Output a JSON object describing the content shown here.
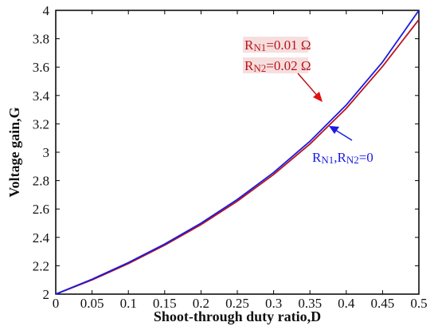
{
  "chart_data": {
    "type": "line",
    "xlabel": "Shoot-through duty ratio,D",
    "ylabel": "Voltage gain,G",
    "xlim": [
      0,
      0.5
    ],
    "ylim": [
      2,
      4
    ],
    "xticks": [
      "0",
      "0.05",
      "0.1",
      "0.15",
      "0.2",
      "0.25",
      "0.3",
      "0.35",
      "0.4",
      "0.45",
      "0.5"
    ],
    "yticks": [
      "2",
      "2.2",
      "2.4",
      "2.6",
      "2.8",
      "3",
      "3.2",
      "3.4",
      "3.6",
      "3.8",
      "4"
    ],
    "grid": false,
    "series": [
      {
        "name": "RN1,RN2=0",
        "color": "#1a1ae6",
        "x": [
          0,
          0.05,
          0.1,
          0.15,
          0.2,
          0.25,
          0.3,
          0.35,
          0.4,
          0.45,
          0.5
        ],
        "y": [
          2.0,
          2.105,
          2.222,
          2.353,
          2.5,
          2.667,
          2.857,
          3.077,
          3.333,
          3.636,
          4.0
        ]
      },
      {
        "name": "RN1=0.01 Ω, RN2=0.02 Ω",
        "color": "#b8151b",
        "x": [
          0,
          0.05,
          0.1,
          0.15,
          0.2,
          0.25,
          0.3,
          0.35,
          0.4,
          0.45,
          0.5
        ],
        "y": [
          2.0,
          2.1,
          2.215,
          2.345,
          2.49,
          2.655,
          2.843,
          3.058,
          3.309,
          3.605,
          3.935
        ]
      }
    ],
    "annotations": {
      "red_line1_main": "R",
      "red_line1_sub": "N1",
      "red_line1_rest": "=0.01 Ω",
      "red_line2_main": "R",
      "red_line2_sub": "N2",
      "red_line2_rest": "=0.02 Ω",
      "blue_r1": "R",
      "blue_sub1": "N1",
      "blue_mid": ",R",
      "blue_sub2": "N2",
      "blue_rest": "=0"
    }
  }
}
